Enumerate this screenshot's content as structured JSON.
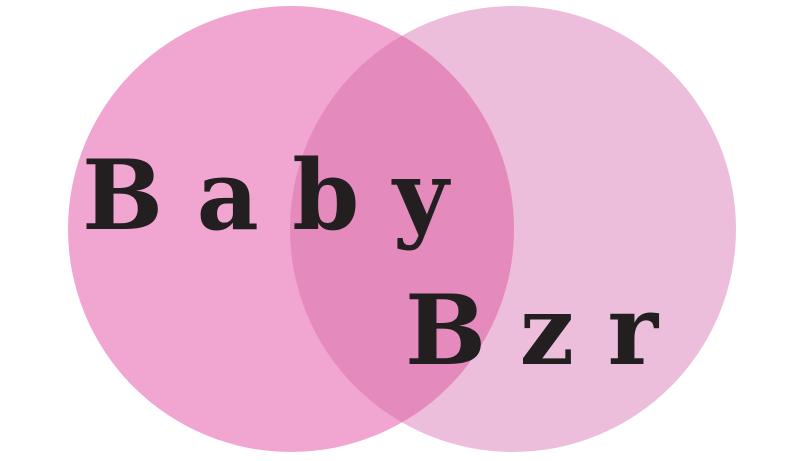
{
  "logo": {
    "line1": "B a b y",
    "line2": "B z r",
    "text_color": "#231f20",
    "left_circle_color": "#f0a6d0",
    "right_circle_color": "#ecbedb",
    "overlap_color": "#e58abd"
  }
}
